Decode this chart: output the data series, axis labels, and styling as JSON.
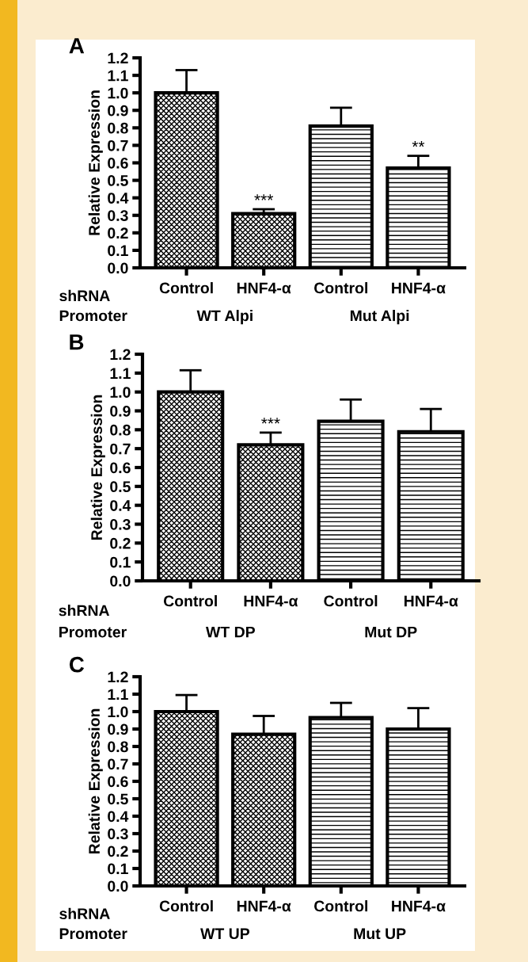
{
  "chart_data": [
    {
      "type": "bar",
      "title": "A",
      "ylabel": "Relative Expression",
      "categories": [
        "Control",
        "HNF4-α",
        "Control",
        "HNF4-α"
      ],
      "series": [
        {
          "color": "#000000",
          "values": [
            1.0,
            0.31,
            null,
            null
          ],
          "errors": [
            0.13,
            0.025,
            null,
            null
          ]
        },
        {
          "color": "#000000",
          "values": [
            null,
            null,
            0.81,
            0.57
          ],
          "errors": [
            null,
            null,
            0.105,
            0.07
          ]
        }
      ],
      "ylim": [
        0,
        1.2
      ],
      "yticks": [
        {
          "value": 0,
          "label": "0.0"
        },
        {
          "value": 0.1,
          "label": "0.1"
        },
        {
          "value": 0.2,
          "label": "0.2"
        },
        {
          "value": 0.3,
          "label": "0.3"
        },
        {
          "value": 0.4,
          "label": "0.4"
        },
        {
          "value": 0.5,
          "label": "0.5"
        },
        {
          "value": 0.6,
          "label": "0.6"
        },
        {
          "value": 0.7,
          "label": "0.7"
        },
        {
          "value": 0.8,
          "label": "0.8"
        },
        {
          "value": 0.9,
          "label": "0.9"
        },
        {
          "value": 1.0,
          "label": "1.0"
        },
        {
          "value": 1.1,
          "label": "1.1"
        },
        {
          "value": 1.2,
          "label": "1.2"
        }
      ],
      "grid": false,
      "legend": false,
      "annotations": [
        "shRNA",
        "Promoter",
        "WT Alpi",
        "Mut Alpi",
        {
          "text": "***",
          "x": "HNF4-α",
          "y": 0.31
        },
        "**"
      ]
    },
    {
      "type": "bar",
      "title": "B",
      "ylabel": "Relative Expression",
      "categories": [
        "Control",
        "HNF4-α",
        "Control",
        "HNF4-α"
      ],
      "series": [
        {
          "color": "#000000",
          "values": [
            1.0,
            0.72,
            null,
            null
          ],
          "errors": [
            0.115,
            0.065,
            null,
            null
          ]
        },
        {
          "color": "#000000",
          "values": [
            null,
            null,
            0.845,
            0.79
          ],
          "errors": [
            null,
            null,
            0.115,
            0.12
          ]
        }
      ],
      "ylim": [
        0,
        1.2
      ],
      "yticks": [
        {
          "value": 0,
          "label": "0.0"
        },
        {
          "value": 0.1,
          "label": "0.1"
        },
        {
          "value": 0.2,
          "label": "0.2"
        },
        {
          "value": 0.3,
          "label": "0.3"
        },
        {
          "value": 0.4,
          "label": "0.4"
        },
        {
          "value": 0.5,
          "label": "0.5"
        },
        {
          "value": 0.6,
          "label": "0.6"
        },
        {
          "value": 0.7,
          "label": "0.7"
        },
        {
          "value": 0.8,
          "label": "0.8"
        },
        {
          "value": 0.9,
          "label": "0.9"
        },
        {
          "value": 1.0,
          "label": "1.0"
        },
        {
          "value": 1.1,
          "label": "1.1"
        },
        {
          "value": 1.2,
          "label": "1.2"
        }
      ],
      "grid": false,
      "legend": false,
      "annotations": [
        "shRNA",
        "Promoter",
        "WT DP",
        "Mut DP",
        {
          "text": "***",
          "x": "HNF4-α",
          "y": 0.72
        }
      ]
    },
    {
      "type": "bar",
      "title": "C",
      "ylabel": "Relative Expression",
      "categories": [
        "Control",
        "HNF4-α",
        "Control",
        "HNF4-α"
      ],
      "series": [
        {
          "color": "#000000",
          "values": [
            1.0,
            0.87,
            null,
            null
          ],
          "errors": [
            0.095,
            0.105,
            null,
            null
          ]
        },
        {
          "color": "#000000",
          "values": [
            null,
            null,
            0.965,
            0.9
          ],
          "errors": [
            null,
            null,
            0.085,
            0.12
          ]
        }
      ],
      "ylim": [
        0,
        1.2
      ],
      "yticks": [
        {
          "value": 0,
          "label": "0.0"
        },
        {
          "value": 0.1,
          "label": "0.1"
        },
        {
          "value": 0.2,
          "label": "0.2"
        },
        {
          "value": 0.3,
          "label": "0.3"
        },
        {
          "value": 0.4,
          "label": "0.4"
        },
        {
          "value": 0.5,
          "label": "0.5"
        },
        {
          "value": 0.6,
          "label": "0.6"
        },
        {
          "value": 0.7,
          "label": "0.7"
        },
        {
          "value": 0.8,
          "label": "0.8"
        },
        {
          "value": 0.9,
          "label": "0.9"
        },
        {
          "value": 1.0,
          "label": "1.0"
        },
        {
          "value": 1.1,
          "label": "1.1"
        },
        {
          "value": 1.2,
          "label": "1.2"
        }
      ],
      "grid": false,
      "legend": false,
      "annotations": [
        "shRNA",
        "Promoter",
        "WT UP",
        "Mut UP"
      ]
    }
  ]
}
